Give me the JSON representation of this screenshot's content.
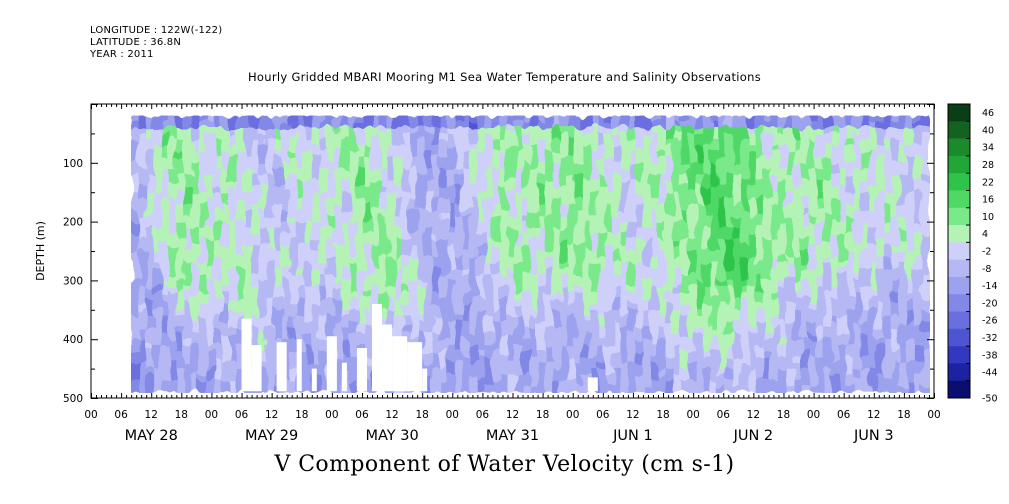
{
  "header": {
    "longitude": "LONGITUDE : 122W(-122)",
    "latitude": "LATITUDE : 36.8N",
    "year": "YEAR : 2011"
  },
  "title": "Hourly Gridded MBARI Mooring M1 Sea Water Temperature and Salinity Observations",
  "variable_label": "V Component of Water Velocity (cm s-1)",
  "chart_data": {
    "type": "heatmap",
    "title": "Hourly Gridded MBARI Mooring M1 Sea Water Temperature and Salinity Observations",
    "xlabel": "",
    "ylabel": "DEPTH (m)",
    "y_range": [
      500,
      0
    ],
    "y_ticks": [
      100,
      200,
      300,
      400,
      500
    ],
    "x_hour_ticks": [
      "00",
      "06",
      "12",
      "18",
      "00",
      "06",
      "12",
      "18",
      "00",
      "06",
      "12",
      "18",
      "00",
      "06",
      "12",
      "18",
      "00",
      "06",
      "12",
      "18",
      "00",
      "06",
      "12",
      "18",
      "00",
      "06",
      "12",
      "18",
      "00"
    ],
    "x_day_labels": [
      "MAY 28",
      "MAY 29",
      "MAY 30",
      "MAY 31",
      "JUN  1",
      "JUN  2",
      "JUN  3"
    ],
    "data_depth_range_m": [
      20,
      485
    ],
    "data_start": "MAY 28 08:00",
    "colorbar": {
      "levels": [
        "46",
        "40",
        "34",
        "28",
        "22",
        "16",
        "10",
        "4",
        "-2",
        "-8",
        "-14",
        "-20",
        "-26",
        "-32",
        "-38",
        "-44",
        "-50"
      ],
      "colors": [
        "#0b3d16",
        "#13621f",
        "#1a8a2c",
        "#22a637",
        "#2fc449",
        "#4fd866",
        "#7ae98a",
        "#b4f2b6",
        "#cfd0fa",
        "#b6b8f4",
        "#9da2ee",
        "#8288e6",
        "#6a6ede",
        "#4e55d2",
        "#3338c0",
        "#1c22a2",
        "#0b0e70"
      ]
    },
    "notes": "Hovmoller plot of northward velocity (cm/s) vs depth and time; bands of positive (green) flow alternate with negative (blue) flow; white gaps mark missing data near the bottom."
  }
}
